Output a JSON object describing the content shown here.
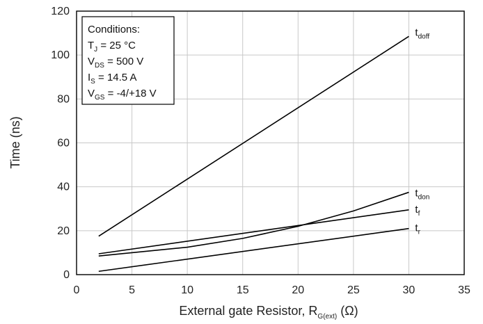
{
  "chart_data": {
    "type": "line",
    "xlabel": {
      "main": "External gate Resistor, R",
      "sub": "G(ext)",
      "unit": " (Ω)"
    },
    "ylabel": "Time (ns)",
    "xlim": [
      0,
      35
    ],
    "ylim": [
      0,
      120
    ],
    "xticks": [
      0,
      5,
      10,
      15,
      20,
      25,
      30,
      35
    ],
    "yticks": [
      0,
      20,
      40,
      60,
      80,
      100,
      120
    ],
    "grid": true,
    "series": [
      {
        "name": "tdoff",
        "label_main": "t",
        "label_sub": "doff",
        "x": [
          2,
          30
        ],
        "y": [
          17.5,
          108.5
        ]
      },
      {
        "name": "tdon",
        "label_main": "t",
        "label_sub": "don",
        "x": [
          2,
          10,
          15,
          20,
          25,
          30
        ],
        "y": [
          8.5,
          12.5,
          16.5,
          22.0,
          29.0,
          37.5
        ]
      },
      {
        "name": "tf",
        "label_main": "t",
        "label_sub": "f",
        "x": [
          2,
          30
        ],
        "y": [
          9.5,
          29.5
        ]
      },
      {
        "name": "tr",
        "label_main": "t",
        "label_sub": "r",
        "x": [
          2,
          30
        ],
        "y": [
          1.5,
          21.0
        ]
      }
    ],
    "annotation": {
      "lines": [
        {
          "main": "Conditions:",
          "sub": "",
          "rest": ""
        },
        {
          "main": "T",
          "sub": "J",
          "rest": " = 25 °C"
        },
        {
          "main": "V",
          "sub": "DS",
          "rest": " = 500 V"
        },
        {
          "main": "I",
          "sub": "S",
          "rest": " = 14.5 A"
        },
        {
          "main": "V",
          "sub": "GS",
          "rest": " = -4/+18 V"
        }
      ]
    }
  }
}
